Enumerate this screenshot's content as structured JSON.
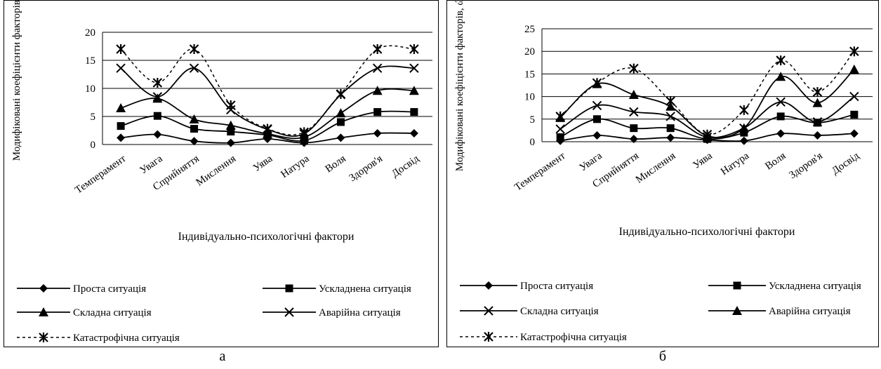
{
  "captions": [
    "а",
    "б"
  ],
  "chart_data": [
    {
      "type": "line",
      "ylabel": "Модифіковані коефіцієнти факторів, ώ",
      "xlabel": "Індивідуально-психологічні фактори",
      "categories": [
        "Темперамент",
        "Увага",
        "Сприйняття",
        "Мислення",
        "Уява",
        "Натура",
        "Воля",
        "Здоров'я",
        "Досвід"
      ],
      "ylim": [
        0,
        20
      ],
      "yticks": [
        0,
        5,
        10,
        15,
        20
      ],
      "grid": true,
      "legend_position": "bottom",
      "series": [
        {
          "name": "Проста ситуація",
          "marker": "diamond",
          "dashed": false,
          "values": [
            1.2,
            1.8,
            0.6,
            0.3,
            1.0,
            0.3,
            1.2,
            2.0,
            2.0
          ]
        },
        {
          "name": "Ускладнена ситуація",
          "marker": "square",
          "dashed": false,
          "values": [
            3.3,
            5.1,
            2.8,
            2.3,
            1.7,
            0.7,
            4.0,
            5.8,
            5.8
          ]
        },
        {
          "name": "Складна ситуація",
          "marker": "triangle",
          "dashed": false,
          "values": [
            6.5,
            8.2,
            4.5,
            3.4,
            1.9,
            1.3,
            5.6,
            9.6,
            9.6
          ]
        },
        {
          "name": "Аварійна ситуація",
          "marker": "x",
          "dashed": false,
          "values": [
            13.6,
            8.5,
            13.6,
            6.2,
            2.7,
            1.9,
            8.9,
            13.6,
            13.6
          ]
        },
        {
          "name": "Катастрофічна ситуація",
          "marker": "star",
          "dashed": true,
          "values": [
            17.0,
            11.0,
            17.0,
            7.0,
            2.8,
            2.2,
            9.0,
            17.0,
            17.0
          ]
        }
      ]
    },
    {
      "type": "line",
      "ylabel": "Модифіковані коефіцієнти факторів, ώ",
      "xlabel": "Індивідуально-психологічні фактори",
      "categories": [
        "Темперамент",
        "Увага",
        "Сприйняття",
        "Мислення",
        "Уява",
        "Натура",
        "Воля",
        "Здоров'я",
        "Досвід"
      ],
      "ylim": [
        0,
        25
      ],
      "yticks": [
        0,
        5,
        10,
        15,
        20,
        25
      ],
      "grid": true,
      "legend_position": "bottom",
      "series": [
        {
          "name": "Проста ситуація",
          "marker": "diamond",
          "dashed": false,
          "values": [
            0.2,
            1.4,
            0.6,
            0.9,
            0.4,
            0.2,
            1.8,
            1.4,
            1.8
          ]
        },
        {
          "name": "Ускладнена ситуація",
          "marker": "square",
          "dashed": false,
          "values": [
            1.0,
            5.0,
            3.0,
            3.0,
            0.6,
            2.0,
            5.6,
            4.2,
            6.0
          ]
        },
        {
          "name": "Складна ситуація",
          "marker": "x",
          "dashed": false,
          "values": [
            2.8,
            8.0,
            6.6,
            5.6,
            1.0,
            3.0,
            8.8,
            4.4,
            10.0
          ]
        },
        {
          "name": "Аварійна ситуація",
          "marker": "triangle",
          "dashed": false,
          "values": [
            5.3,
            12.8,
            10.4,
            7.8,
            1.3,
            3.0,
            14.4,
            8.6,
            16.0
          ]
        },
        {
          "name": "Катастрофічна ситуація",
          "marker": "star",
          "dashed": true,
          "values": [
            5.6,
            13.0,
            16.2,
            9.0,
            1.6,
            7.0,
            18.0,
            11.0,
            20.0
          ]
        }
      ]
    }
  ]
}
